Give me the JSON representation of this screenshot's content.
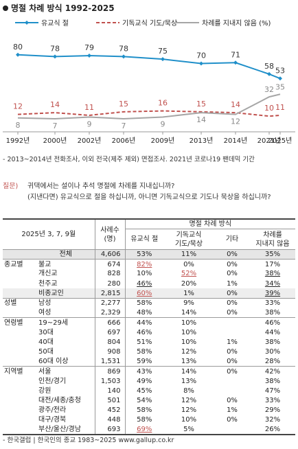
{
  "title": "명절 차례 방식 1992-2025",
  "chart_data": {
    "type": "line",
    "title": "명절 차례 방식 1992-2025",
    "categories": [
      "1992년",
      "2000년",
      "2002년",
      "2006년",
      "2009년",
      "2013년",
      "2014년",
      "2021년",
      "2025년"
    ],
    "series": [
      {
        "name": "유교식 절",
        "color": "#1f8fc9",
        "dash": "solid",
        "values": [
          80,
          78,
          79,
          78,
          75,
          70,
          71,
          58,
          53
        ]
      },
      {
        "name": "기독교식 기도/묵상",
        "color": "#c0504d",
        "dash": "dashed",
        "values": [
          12,
          14,
          11,
          15,
          16,
          15,
          14,
          10,
          11
        ]
      },
      {
        "name": "차례를 지내지 않음 (%)",
        "color": "#a6a6a6",
        "dash": "solid",
        "values": [
          8,
          7,
          9,
          7,
          9,
          14,
          12,
          32,
          35
        ]
      }
    ],
    "ylim": [
      0,
      90
    ],
    "grid": false,
    "legend": "top"
  },
  "notes": {
    "method": "- 2013~2014년 전화조사, 이외 전국(제주 제외) 면접조사. 2021년 코로나19 팬데믹 기간"
  },
  "question": {
    "label": "질문)",
    "line1": "귀댁에서는 설이나 추석 명절에 차례를 지내십니까?",
    "line2": "(지낸다면) 유교식으로 절을 하십니까, 아니면 기독교식으로 기도나 묵상을 하십니까?"
  },
  "table": {
    "period": "2025년 3, 7, 9월",
    "sample_label": "사례수\n(명)",
    "group_header": "명절 차례 방식",
    "columns": [
      "유교식 절",
      "기독교식\n기도/묵상",
      "기타",
      "차례를\n지내지 않음"
    ],
    "total": {
      "label": "전체",
      "n": "4,606",
      "values": [
        "53%",
        "11%",
        "0%",
        "35%"
      ]
    },
    "groups": [
      {
        "name": "종교별",
        "rows": [
          {
            "label": "불교",
            "n": "674",
            "values": [
              "82%",
              "0%",
              "0%",
              "17%"
            ],
            "marks": [
              "red",
              "",
              "",
              ""
            ]
          },
          {
            "label": "개신교",
            "n": "828",
            "values": [
              "10%",
              "52%",
              "0%",
              "38%"
            ],
            "marks": [
              "",
              "red",
              "",
              "blk"
            ]
          },
          {
            "label": "천주교",
            "n": "280",
            "values": [
              "46%",
              "20%",
              "1%",
              "34%"
            ],
            "marks": [
              "blk",
              "",
              "",
              "blk"
            ]
          },
          {
            "label": "비종교인",
            "n": "2,815",
            "values": [
              "60%",
              "1%",
              "0%",
              "39%"
            ],
            "marks": [
              "red",
              "",
              "",
              "blk"
            ],
            "shade": true
          }
        ]
      },
      {
        "name": "성별",
        "rows": [
          {
            "label": "남성",
            "n": "2,277",
            "values": [
              "58%",
              "9%",
              "0%",
              "33%"
            ]
          },
          {
            "label": "여성",
            "n": "2,329",
            "values": [
              "48%",
              "14%",
              "0%",
              "38%"
            ]
          }
        ]
      },
      {
        "name": "연령별",
        "rows": [
          {
            "label": "19~29세",
            "n": "666",
            "values": [
              "44%",
              "10%",
              "",
              "46%"
            ]
          },
          {
            "label": "30대",
            "n": "697",
            "values": [
              "46%",
              "10%",
              "",
              "44%"
            ]
          },
          {
            "label": "40대",
            "n": "804",
            "values": [
              "51%",
              "10%",
              "1%",
              "38%"
            ]
          },
          {
            "label": "50대",
            "n": "908",
            "values": [
              "58%",
              "12%",
              "0%",
              "30%"
            ]
          },
          {
            "label": "60대 이상",
            "n": "1,531",
            "values": [
              "59%",
              "13%",
              "0%",
              "28%"
            ]
          }
        ]
      },
      {
        "name": "지역별",
        "rows": [
          {
            "label": "서울",
            "n": "869",
            "values": [
              "43%",
              "14%",
              "0%",
              "42%"
            ]
          },
          {
            "label": "인천/경기",
            "n": "1,503",
            "values": [
              "49%",
              "13%",
              "",
              "38%"
            ]
          },
          {
            "label": "강원",
            "n": "140",
            "values": [
              "45%",
              "8%",
              "",
              "47%"
            ]
          },
          {
            "label": "대전/세종/충청",
            "n": "501",
            "values": [
              "54%",
              "12%",
              "0%",
              "33%"
            ]
          },
          {
            "label": "광주/전라",
            "n": "452",
            "values": [
              "58%",
              "12%",
              "1%",
              "29%"
            ]
          },
          {
            "label": "대구/경북",
            "n": "448",
            "values": [
              "58%",
              "10%",
              "0%",
              "32%"
            ]
          },
          {
            "label": "부산/울산/경남",
            "n": "693",
            "values": [
              "69%",
              "5%",
              "",
              "26%"
            ],
            "marks": [
              "red",
              "",
              "",
              ""
            ]
          }
        ]
      }
    ]
  },
  "footer": "- 한국갤럽 | 한국인의 종교 1983~2025 www.gallup.co.kr"
}
